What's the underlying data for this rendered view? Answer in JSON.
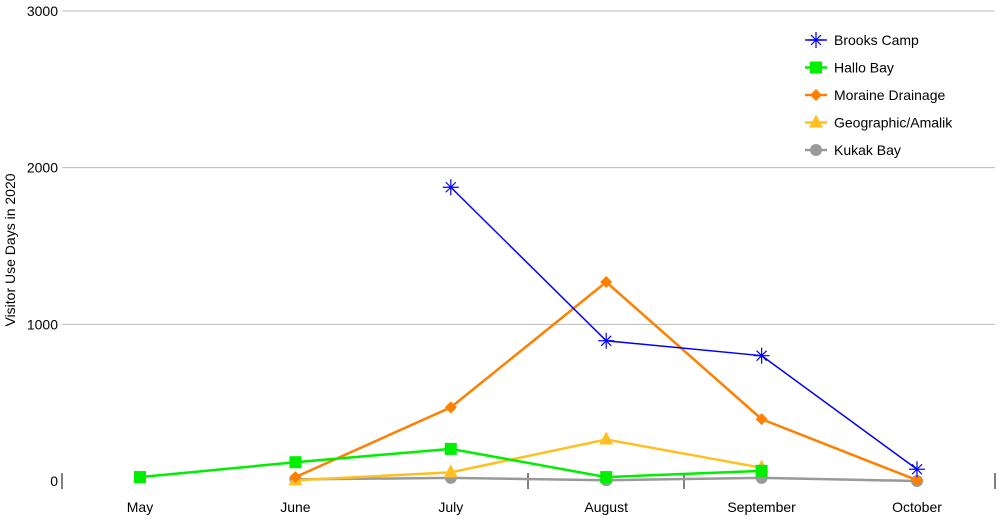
{
  "chart_data": {
    "type": "line",
    "title": "",
    "xlabel": "",
    "ylabel": "Visitor Use Days in 2020",
    "categories": [
      "May",
      "June",
      "July",
      "August",
      "September",
      "October"
    ],
    "ylim": [
      0,
      3000
    ],
    "yticks": [
      0,
      1000,
      2000,
      3000
    ],
    "grid": true,
    "legend_position": "top-right",
    "series": [
      {
        "name": "Brooks Camp",
        "color": "#0000ff",
        "marker": "asterisk",
        "values": [
          null,
          null,
          1875,
          895,
          800,
          75
        ]
      },
      {
        "name": "Hallo Bay",
        "color": "#00ee00",
        "marker": "square",
        "values": [
          25,
          120,
          205,
          25,
          65,
          null
        ]
      },
      {
        "name": "Moraine Drainage",
        "color": "#ff8000",
        "marker": "diamond",
        "values": [
          null,
          25,
          470,
          1270,
          395,
          5
        ]
      },
      {
        "name": "Geographic/Amalik",
        "color": "#ffbf20",
        "marker": "triangle",
        "values": [
          null,
          5,
          55,
          265,
          85,
          null
        ]
      },
      {
        "name": "Kukak Bay",
        "color": "#999999",
        "marker": "circle",
        "values": [
          null,
          10,
          20,
          5,
          20,
          0
        ]
      }
    ]
  }
}
